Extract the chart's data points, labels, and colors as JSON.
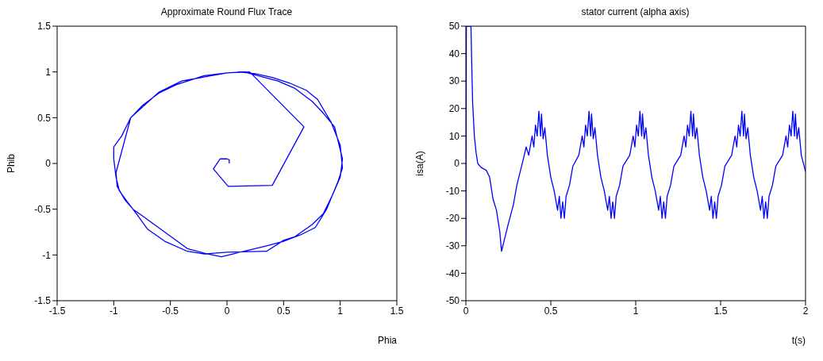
{
  "chart_data": [
    {
      "type": "line",
      "title": "Approximate Round Flux Trace",
      "xlabel": "Phia",
      "ylabel": "Phib",
      "xlim": [
        -1.5,
        1.5
      ],
      "ylim": [
        -1.5,
        1.5
      ],
      "xticks": [
        -1.5,
        -1,
        -0.5,
        0,
        0.5,
        1,
        1.5
      ],
      "yticks": [
        -1.5,
        -1,
        -0.5,
        0,
        0.5,
        1,
        1.5
      ],
      "grid": false,
      "series": [
        {
          "color": "#0000ff",
          "x": [
            0.02,
            0.02,
            0,
            -0.06,
            -0.12,
            0.01,
            0.4,
            0.68,
            0.2,
            0,
            -0.2,
            -0.45,
            -0.6,
            -0.75,
            -0.85,
            -0.93,
            -1.0,
            -1.0,
            -0.98,
            -0.95,
            -0.88,
            -0.8,
            -0.7,
            -0.55,
            -0.35,
            -0.2,
            0,
            0.35,
            0.5,
            0.6,
            0.75,
            0.85,
            0.93,
            1.0,
            1.02,
            0.98,
            0.95,
            0.85,
            0.75,
            0.6,
            0.45,
            0.3,
            0.15,
            0,
            -0.4,
            -0.6,
            -0.85,
            -0.98,
            -0.97,
            -0.9,
            -0.83,
            -0.75,
            -0.35,
            -0.2,
            -0.05,
            0.35,
            0.5,
            0.65,
            0.78,
            0.88,
            0.98,
            1.02,
            1.0,
            0.92,
            0.8,
            0.7,
            0.55,
            0.4,
            0.25,
            0.1
          ],
          "values": [
            0.0,
            0.04,
            0.05,
            0.05,
            -0.06,
            -0.25,
            -0.24,
            0.4,
            1.0,
            0.99,
            0.96,
            0.86,
            0.77,
            0.63,
            0.5,
            0.3,
            0.18,
            0.05,
            -0.15,
            -0.3,
            -0.42,
            -0.55,
            -0.72,
            -0.85,
            -0.96,
            -0.99,
            -0.97,
            -0.96,
            -0.84,
            -0.8,
            -0.67,
            -0.55,
            -0.35,
            -0.15,
            0.05,
            0.25,
            0.4,
            0.55,
            0.68,
            0.82,
            0.9,
            0.95,
            1.0,
            0.99,
            0.9,
            0.78,
            0.5,
            -0.1,
            -0.25,
            -0.4,
            -0.5,
            -0.57,
            -0.93,
            -0.98,
            -1.02,
            -0.9,
            -0.85,
            -0.78,
            -0.7,
            -0.5,
            -0.2,
            -0.05,
            0.2,
            0.45,
            0.7,
            0.8,
            0.88,
            0.94,
            0.98,
            1.0
          ]
        }
      ]
    },
    {
      "type": "line",
      "title": "stator current (alpha axis)",
      "xlabel": "t(s)",
      "ylabel": "isa(A)",
      "xlim": [
        0,
        2
      ],
      "ylim": [
        -50,
        50
      ],
      "xticks": [
        0,
        0.5,
        1,
        1.5,
        2
      ],
      "yticks": [
        -50,
        -40,
        -30,
        -20,
        -10,
        0,
        10,
        20,
        30,
        40,
        50
      ],
      "grid": false,
      "series": [
        {
          "color": "#0000ff",
          "x": [
            0,
            0.003,
            0.03,
            0.035,
            0.04,
            0.05,
            0.06,
            0.07,
            0.09,
            0.12,
            0.14,
            0.16,
            0.18,
            0.2,
            0.21,
            0.23,
            0.25,
            0.28,
            0.3,
            0.32,
            0.34,
            0.355,
            0.37,
            0.39,
            0.4,
            0.41,
            0.42,
            0.43,
            0.44,
            0.445,
            0.455,
            0.465,
            0.48,
            0.5,
            0.52,
            0.54,
            0.55,
            0.56,
            0.57,
            0.58,
            0.59,
            0.61,
            0.63,
            0.665,
            0.685,
            0.695,
            0.705,
            0.715,
            0.725,
            0.735,
            0.74,
            0.75,
            0.76,
            0.775,
            0.795,
            0.815,
            0.835,
            0.845,
            0.855,
            0.865,
            0.875,
            0.885,
            0.905,
            0.925,
            0.965,
            0.985,
            0.995,
            1.005,
            1.015,
            1.025,
            1.035,
            1.04,
            1.05,
            1.06,
            1.075,
            1.095,
            1.115,
            1.135,
            1.145,
            1.155,
            1.165,
            1.175,
            1.185,
            1.205,
            1.225,
            1.265,
            1.285,
            1.295,
            1.305,
            1.315,
            1.325,
            1.335,
            1.34,
            1.35,
            1.36,
            1.375,
            1.395,
            1.415,
            1.435,
            1.445,
            1.455,
            1.465,
            1.475,
            1.485,
            1.505,
            1.525,
            1.565,
            1.585,
            1.595,
            1.605,
            1.615,
            1.625,
            1.635,
            1.64,
            1.65,
            1.66,
            1.675,
            1.695,
            1.715,
            1.735,
            1.745,
            1.755,
            1.765,
            1.775,
            1.785,
            1.805,
            1.825,
            1.865,
            1.885,
            1.895,
            1.905,
            1.915,
            1.925,
            1.935,
            1.94,
            1.95,
            1.96,
            1.975,
            2.0
          ],
          "values": [
            -30,
            50,
            50,
            35,
            22,
            10,
            4,
            0,
            -1.5,
            -2.5,
            -5,
            -13,
            -17,
            -25,
            -32,
            -27,
            -22,
            -15,
            -8,
            -3,
            2,
            6,
            3,
            10,
            6,
            14,
            10,
            19,
            10,
            18,
            9,
            13,
            3,
            -5,
            -10,
            -17,
            -12,
            -20,
            -14,
            -20,
            -12,
            -8,
            -1,
            3,
            10,
            6,
            14,
            10,
            19,
            10,
            18,
            9,
            13,
            3,
            -5,
            -10,
            -17,
            -12,
            -20,
            -14,
            -20,
            -12,
            -8,
            -1,
            3,
            10,
            6,
            14,
            10,
            19,
            10,
            18,
            9,
            13,
            3,
            -5,
            -10,
            -17,
            -12,
            -20,
            -14,
            -20,
            -12,
            -8,
            -1,
            3,
            10,
            6,
            14,
            10,
            19,
            10,
            18,
            9,
            13,
            3,
            -5,
            -10,
            -17,
            -12,
            -20,
            -14,
            -20,
            -12,
            -8,
            -1,
            3,
            10,
            6,
            14,
            10,
            19,
            10,
            18,
            9,
            13,
            3,
            -5,
            -10,
            -17,
            -12,
            -20,
            -14,
            -20,
            -12,
            -8,
            -1,
            3,
            10,
            6,
            14,
            10,
            19,
            10,
            18,
            9,
            13,
            3,
            -3
          ]
        }
      ]
    }
  ]
}
